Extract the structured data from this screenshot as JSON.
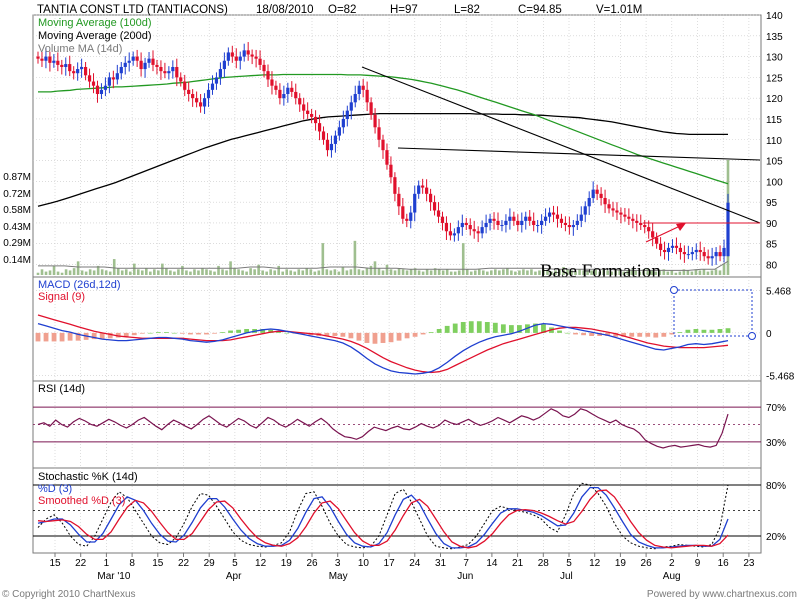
{
  "header": {
    "title": "TANTIA CONST LTD (TANTIACONS)",
    "date": "18/08/2010",
    "open": "O=82",
    "high": "H=97",
    "low": "L=82",
    "close": "C=94.85",
    "volume": "V=1.01M"
  },
  "footer": {
    "copyright": "© Copyright 2010 ChartNexus",
    "powered": "Powered by www.chartnexus.com"
  },
  "colors": {
    "up": "#1f3fd0",
    "down": "#e0102c",
    "ma100": "#229922",
    "ma200": "#000000",
    "volume_bar": "#9fbf8f",
    "macd": "#1f3fd0",
    "signal": "#e0102c",
    "hist_pos": "#7fcf5f",
    "hist_neg": "#f0a08f",
    "rsi": "#7a1450",
    "grid": "#c8c8c8"
  },
  "chart_data": [
    {
      "type": "candlestick",
      "panel": "price",
      "legend": [
        "Moving Average (100d)",
        "Moving Average (200d)",
        "Volume MA (14d)"
      ],
      "y_ticks": [
        80,
        85,
        90,
        95,
        100,
        105,
        110,
        115,
        120,
        125,
        130,
        135,
        140
      ],
      "ylim": [
        77,
        140
      ],
      "volume_ticks": [
        "0.14M",
        "0.29M",
        "0.43M",
        "0.58M",
        "0.72M",
        "0.87M"
      ],
      "volume_lim": [
        0,
        1.01
      ],
      "closes": [
        129.5,
        129,
        130,
        128.5,
        129,
        128,
        127.5,
        128.2,
        126.5,
        126,
        127,
        127.5,
        125.5,
        124,
        123,
        121,
        122,
        123,
        125,
        124.5,
        126,
        127.5,
        128.5,
        129,
        130,
        129,
        127,
        128.5,
        129.5,
        128,
        127.5,
        126.5,
        126,
        126.5,
        127.5,
        125,
        124,
        122,
        121,
        120,
        119,
        118,
        120,
        122,
        123.5,
        125,
        127,
        129,
        131,
        130,
        129,
        130,
        131.5,
        130.5,
        130,
        129.5,
        128,
        126.5,
        124.5,
        123,
        122,
        120,
        121,
        122.5,
        121.5,
        120,
        118.5,
        117,
        116.2,
        115.5,
        114,
        112,
        110,
        107.5,
        109,
        111,
        113,
        115,
        117,
        119,
        121,
        123,
        122,
        119,
        116,
        113,
        110,
        107.5,
        104,
        101,
        97,
        94,
        91,
        90.5,
        92.5,
        97,
        99,
        98.5,
        97,
        95,
        93,
        91.5,
        90,
        88,
        87,
        87.5,
        89,
        90,
        89.5,
        88.5,
        88,
        87.5,
        89,
        90,
        91,
        90.5,
        89.5,
        89.5,
        90.5,
        91.5,
        90.5,
        89.5,
        90.5,
        91.5,
        90.5,
        89.5,
        89.5,
        90.5,
        91.5,
        92.5,
        92,
        91,
        90,
        89.5,
        89,
        89.5,
        90.5,
        92,
        94,
        96,
        98,
        97,
        96,
        94.5,
        93.5,
        93,
        92.5,
        92,
        91.5,
        91,
        90.5,
        90,
        89.5,
        89,
        88,
        86.5,
        85,
        83.5,
        83,
        84,
        84.5,
        84,
        83,
        82.5,
        82.5,
        83,
        83.5,
        83,
        82,
        81.5,
        82,
        83,
        82,
        84,
        94.85
      ],
      "ma100": [
        121.5,
        121.5,
        121.5,
        121.7,
        121.8,
        121.9,
        122.1,
        122.2,
        122.3,
        122.4,
        122.5,
        122.6,
        122.7,
        122.7,
        122.8,
        122.9,
        123,
        123.1,
        123.2,
        123.3,
        123.4,
        123.6,
        123.7,
        123.8,
        124,
        124.2,
        124.4,
        124.6,
        124.8,
        125,
        125.1,
        125.2,
        125.3,
        125.4,
        125.5,
        125.6,
        125.6,
        125.6,
        125.7,
        125.7,
        125.7,
        125.7,
        125.7,
        125.7,
        125.7,
        125.7,
        125.7,
        125.7,
        125.6,
        125.6,
        125.6,
        125.5,
        125.4,
        125.3,
        125.2,
        125.1,
        124.9,
        124.7,
        124.5,
        124.2,
        123.9,
        123.6,
        123.2,
        122.8,
        122.4,
        122,
        121.5,
        121,
        120.5,
        120,
        119.5,
        119,
        118.5,
        118,
        117.5,
        117,
        116.5,
        116,
        115.4,
        114.8,
        114.2,
        113.6,
        113,
        112.4,
        111.8,
        111.2,
        110.6,
        110,
        109.4,
        108.8,
        108.2,
        107.6,
        107,
        106.4,
        105.9,
        105.4,
        104.9,
        104.4,
        103.9,
        103.4,
        102.9,
        102.4,
        101.9,
        101.4,
        100.9,
        100.4,
        99.9,
        99.4
      ],
      "ma200": [
        94,
        94.4,
        94.8,
        95.2,
        95.7,
        96.2,
        96.7,
        97.2,
        97.7,
        98.2,
        98.7,
        99.2,
        99.7,
        100.3,
        100.9,
        101.5,
        102.1,
        102.7,
        103.3,
        103.9,
        104.5,
        105.1,
        105.7,
        106.3,
        106.9,
        107.5,
        108.1,
        108.6,
        109.1,
        109.6,
        110.1,
        110.5,
        110.9,
        111.3,
        111.7,
        112.1,
        112.5,
        112.9,
        113.3,
        113.7,
        114.1,
        114.5,
        114.8,
        115.1,
        115.3,
        115.5,
        115.6,
        115.7,
        115.8,
        115.9,
        116,
        116.1,
        116.2,
        116.3,
        116.3,
        116.3,
        116.3,
        116.3,
        116.3,
        116.3,
        116.3,
        116.3,
        116.3,
        116.3,
        116.3,
        116.3,
        116.3,
        116.3,
        116.2,
        116.2,
        116.2,
        116.2,
        116.1,
        116.1,
        116.1,
        116,
        116,
        115.9,
        115.9,
        115.8,
        115.7,
        115.6,
        115.5,
        115.4,
        115.3,
        115.1,
        114.9,
        114.7,
        114.5,
        114.3,
        114,
        113.7,
        113.4,
        113.1,
        112.8,
        112.5,
        112.2,
        111.9,
        111.7,
        111.5,
        111.4,
        111.3,
        111.3,
        111.3,
        111.3,
        111.3,
        111.3,
        111.3
      ],
      "volume": [
        0.02,
        0.05,
        0.03,
        0.04,
        0.08,
        0.03,
        0.02,
        0.05,
        0.04,
        0.06,
        0.12,
        0.04,
        0.03,
        0.05,
        0.04,
        0.08,
        0.05,
        0.04,
        0.03,
        0.14,
        0.06,
        0.04,
        0.05,
        0.03,
        0.1,
        0.05,
        0.04,
        0.06,
        0.03,
        0.05,
        0.04,
        0.1,
        0.06,
        0.04,
        0.03,
        0.05,
        0.08,
        0.04,
        0.03,
        0.05,
        0.04,
        0.06,
        0.05,
        0.04,
        0.03,
        0.08,
        0.05,
        0.04,
        0.12,
        0.06,
        0.05,
        0.04,
        0.03,
        0.06,
        0.05,
        0.09,
        0.04,
        0.03,
        0.05,
        0.04,
        0.08,
        0.03,
        0.05,
        0.04,
        0.03,
        0.05,
        0.04,
        0.06,
        0.05,
        0.03,
        0.04,
        0.28,
        0.05,
        0.04,
        0.05,
        0.03,
        0.07,
        0.04,
        0.05,
        0.3,
        0.05,
        0.04,
        0.06,
        0.08,
        0.12,
        0.06,
        0.04,
        0.09,
        0.05,
        0.04,
        0.06,
        0.05,
        0.04,
        0.05,
        0.06,
        0.04,
        0.03,
        0.05,
        0.04,
        0.06,
        0.05,
        0.04,
        0.05,
        0.03,
        0.03,
        0.04,
        0.28,
        0.05,
        0.03,
        0.04,
        0.05,
        0.04,
        0.03,
        0.04,
        0.05,
        0.04,
        0.05,
        0.06,
        0.04,
        0.03,
        0.04,
        0.05,
        0.04,
        0.05,
        0.03,
        0.04,
        0.05,
        0.04,
        0.03,
        0.04,
        0.05,
        0.07,
        0.05,
        0.04,
        0.03,
        0.05,
        0.04,
        0.03,
        0.04,
        0.05,
        0.03,
        0.05,
        0.04,
        0.03,
        0.04,
        0.05,
        0.03,
        0.04,
        0.05,
        0.04,
        0.03,
        0.05,
        0.06,
        0.04,
        0.03,
        0.04,
        0.05,
        0.03,
        0.04,
        0.02,
        0.03,
        0.05,
        0.04,
        0.03,
        0.05,
        0.04,
        0.05,
        0.03,
        0.04,
        0.05,
        0.04,
        0.1,
        1.01
      ],
      "volume_ma": [
        0.08,
        0.08,
        0.08,
        0.07,
        0.07,
        0.07,
        0.06,
        0.06,
        0.06,
        0.06,
        0.06,
        0.06,
        0.06,
        0.06,
        0.06,
        0.06,
        0.07,
        0.07,
        0.06,
        0.06,
        0.06,
        0.06,
        0.07,
        0.07,
        0.07,
        0.06,
        0.06,
        0.06,
        0.05,
        0.05,
        0.05,
        0.05,
        0.05,
        0.05,
        0.06,
        0.06,
        0.06,
        0.06,
        0.06,
        0.05,
        0.05,
        0.05,
        0.05,
        0.05,
        0.04,
        0.04,
        0.04,
        0.04,
        0.04,
        0.04,
        0.05,
        0.05,
        0.12
      ],
      "annotation": "Base Formation"
    },
    {
      "type": "line",
      "panel": "macd",
      "legend": [
        "MACD (26d,12d)",
        "Signal (9)"
      ],
      "y_ticks": [
        "5.468",
        "0",
        "-5.468"
      ],
      "ylim": [
        -6.2,
        7.2
      ],
      "macd": [
        1.2,
        0.9,
        0.6,
        0.3,
        0.1,
        -0.2,
        -0.4,
        -0.6,
        -0.8,
        -0.9,
        -1,
        -1,
        -0.9,
        -0.8,
        -0.7,
        -0.6,
        -0.6,
        -0.7,
        -0.8,
        -1,
        -1.1,
        -1.2,
        -1.1,
        -0.9,
        -0.6,
        -0.3,
        0,
        0.2,
        0.4,
        0.5,
        0.4,
        0.2,
        0,
        -0.2,
        -0.4,
        -0.6,
        -0.8,
        -1,
        -1.3,
        -1.8,
        -2.5,
        -3.3,
        -4,
        -4.5,
        -4.9,
        -5.1,
        -5.2,
        -5.3,
        -5.2,
        -5,
        -4.5,
        -3.8,
        -3,
        -2.3,
        -1.7,
        -1.2,
        -0.8,
        -0.5,
        -0.3,
        -0.1,
        0.2,
        0.6,
        1,
        1.2,
        1.1,
        0.9,
        0.7,
        0.5,
        0.3,
        0.1,
        -0.1,
        -0.3,
        -0.6,
        -0.9,
        -1.2,
        -1.5,
        -1.8,
        -2.1,
        -2.2,
        -2,
        -1.8,
        -1.5,
        -1.4,
        -1.5,
        -1.4,
        -1.2,
        -1
      ],
      "signal": [
        2.3,
        2,
        1.7,
        1.4,
        1.1,
        0.8,
        0.5,
        0.2,
        0,
        -0.2,
        -0.4,
        -0.5,
        -0.6,
        -0.7,
        -0.7,
        -0.7,
        -0.7,
        -0.7,
        -0.7,
        -0.8,
        -0.9,
        -1,
        -1,
        -1,
        -0.9,
        -0.7,
        -0.5,
        -0.3,
        -0.1,
        0.1,
        0.2,
        0.2,
        0.1,
        0,
        -0.1,
        -0.2,
        -0.4,
        -0.6,
        -0.8,
        -1.1,
        -1.5,
        -2,
        -2.6,
        -3.2,
        -3.7,
        -4.1,
        -4.5,
        -4.8,
        -5,
        -5.1,
        -5,
        -4.7,
        -4.2,
        -3.7,
        -3.2,
        -2.7,
        -2.2,
        -1.8,
        -1.4,
        -1.1,
        -0.8,
        -0.5,
        -0.2,
        0.1,
        0.4,
        0.6,
        0.7,
        0.7,
        0.6,
        0.5,
        0.3,
        0.1,
        -0.1,
        -0.4,
        -0.7,
        -1,
        -1.3,
        -1.5,
        -1.7,
        -1.8,
        -1.9,
        -1.9,
        -1.9,
        -1.9,
        -1.8,
        -1.7,
        -1.6
      ]
    },
    {
      "type": "line",
      "panel": "rsi",
      "legend": [
        "RSI (14d)"
      ],
      "y_ticks": [
        "70%",
        "30%"
      ],
      "ylim": [
        0,
        100
      ],
      "rsi": [
        50,
        52,
        48,
        55,
        50,
        47,
        53,
        57,
        54,
        50,
        48,
        52,
        56,
        53,
        49,
        46,
        50,
        55,
        58,
        53,
        48,
        44,
        50,
        55,
        52,
        48,
        45,
        50,
        56,
        60,
        55,
        50,
        47,
        52,
        57,
        54,
        49,
        46,
        52,
        58,
        55,
        50,
        47,
        51,
        56,
        52,
        48,
        53,
        57,
        52,
        45,
        40,
        36,
        35,
        33,
        36,
        42,
        47,
        45,
        43,
        46,
        48,
        45,
        44,
        47,
        51,
        48,
        46,
        49,
        55,
        52,
        50,
        53,
        56,
        52,
        49,
        51,
        54,
        58,
        55,
        52,
        56,
        60,
        58,
        55,
        58,
        63,
        68,
        65,
        60,
        58,
        62,
        68,
        66,
        62,
        58,
        55,
        52,
        55,
        50,
        47,
        45,
        40,
        32,
        28,
        25,
        23,
        25,
        26,
        24,
        25,
        26,
        27,
        25,
        24,
        26,
        40,
        62
      ]
    },
    {
      "type": "line",
      "panel": "stochastic",
      "legend": [
        "Stochastic %K (14d)",
        "%D (3)",
        "Smoothed %D (3)"
      ],
      "y_ticks": [
        "80%",
        "20%"
      ],
      "ylim": [
        0,
        100
      ],
      "k": [
        30,
        40,
        45,
        35,
        20,
        10,
        8,
        20,
        40,
        60,
        72,
        65,
        50,
        35,
        20,
        12,
        10,
        18,
        35,
        55,
        70,
        68,
        55,
        40,
        25,
        15,
        10,
        8,
        7,
        9,
        12,
        25,
        50,
        70,
        72,
        55,
        35,
        20,
        10,
        7,
        6,
        8,
        20,
        45,
        70,
        75,
        60,
        40,
        20,
        8,
        6,
        5,
        7,
        10,
        20,
        35,
        50,
        55,
        52,
        50,
        48,
        45,
        40,
        30,
        25,
        45,
        70,
        82,
        80,
        70,
        55,
        35,
        20,
        12,
        8,
        6,
        5,
        7,
        8,
        10,
        9,
        8,
        7,
        10,
        30,
        80
      ],
      "d": [
        35,
        37,
        40,
        40,
        33,
        22,
        13,
        13,
        23,
        40,
        57,
        66,
        62,
        50,
        35,
        22,
        14,
        13,
        21,
        36,
        53,
        64,
        64,
        54,
        40,
        27,
        17,
        11,
        8,
        8,
        9,
        15,
        29,
        48,
        64,
        66,
        54,
        37,
        22,
        12,
        8,
        7,
        11,
        24,
        45,
        63,
        68,
        58,
        40,
        23,
        11,
        6,
        6,
        7,
        12,
        22,
        35,
        47,
        52,
        52,
        50,
        48,
        44,
        38,
        32,
        33,
        47,
        66,
        77,
        77,
        68,
        53,
        37,
        22,
        13,
        9,
        6,
        6,
        7,
        8,
        9,
        9,
        8,
        8,
        16,
        40
      ],
      "smoothed_d": [
        38,
        37,
        38,
        39,
        37,
        31,
        22,
        16,
        16,
        25,
        40,
        54,
        62,
        59,
        49,
        36,
        24,
        16,
        16,
        23,
        37,
        51,
        60,
        61,
        53,
        40,
        28,
        18,
        12,
        9,
        8,
        11,
        18,
        31,
        47,
        59,
        61,
        52,
        38,
        24,
        14,
        9,
        9,
        14,
        27,
        44,
        59,
        63,
        55,
        40,
        25,
        13,
        8,
        6,
        8,
        14,
        23,
        35,
        45,
        50,
        51,
        50,
        47,
        43,
        38,
        34,
        37,
        49,
        63,
        73,
        74,
        66,
        52,
        37,
        24,
        15,
        9,
        7,
        6,
        7,
        8,
        9,
        9,
        8,
        11,
        21
      ]
    },
    {
      "type": "axis",
      "panel": "date",
      "x_ticks": [
        "15",
        "22",
        "1",
        "8",
        "15",
        "22",
        "29",
        "5",
        "12",
        "19",
        "26",
        "3",
        "10",
        "17",
        "24",
        "31",
        "7",
        "14",
        "21",
        "28",
        "5",
        "12",
        "19",
        "26",
        "2",
        "9",
        "16",
        "23"
      ],
      "months": [
        "Mar '10",
        "Apr",
        "May",
        "Jun",
        "Jul",
        "Aug"
      ]
    }
  ]
}
